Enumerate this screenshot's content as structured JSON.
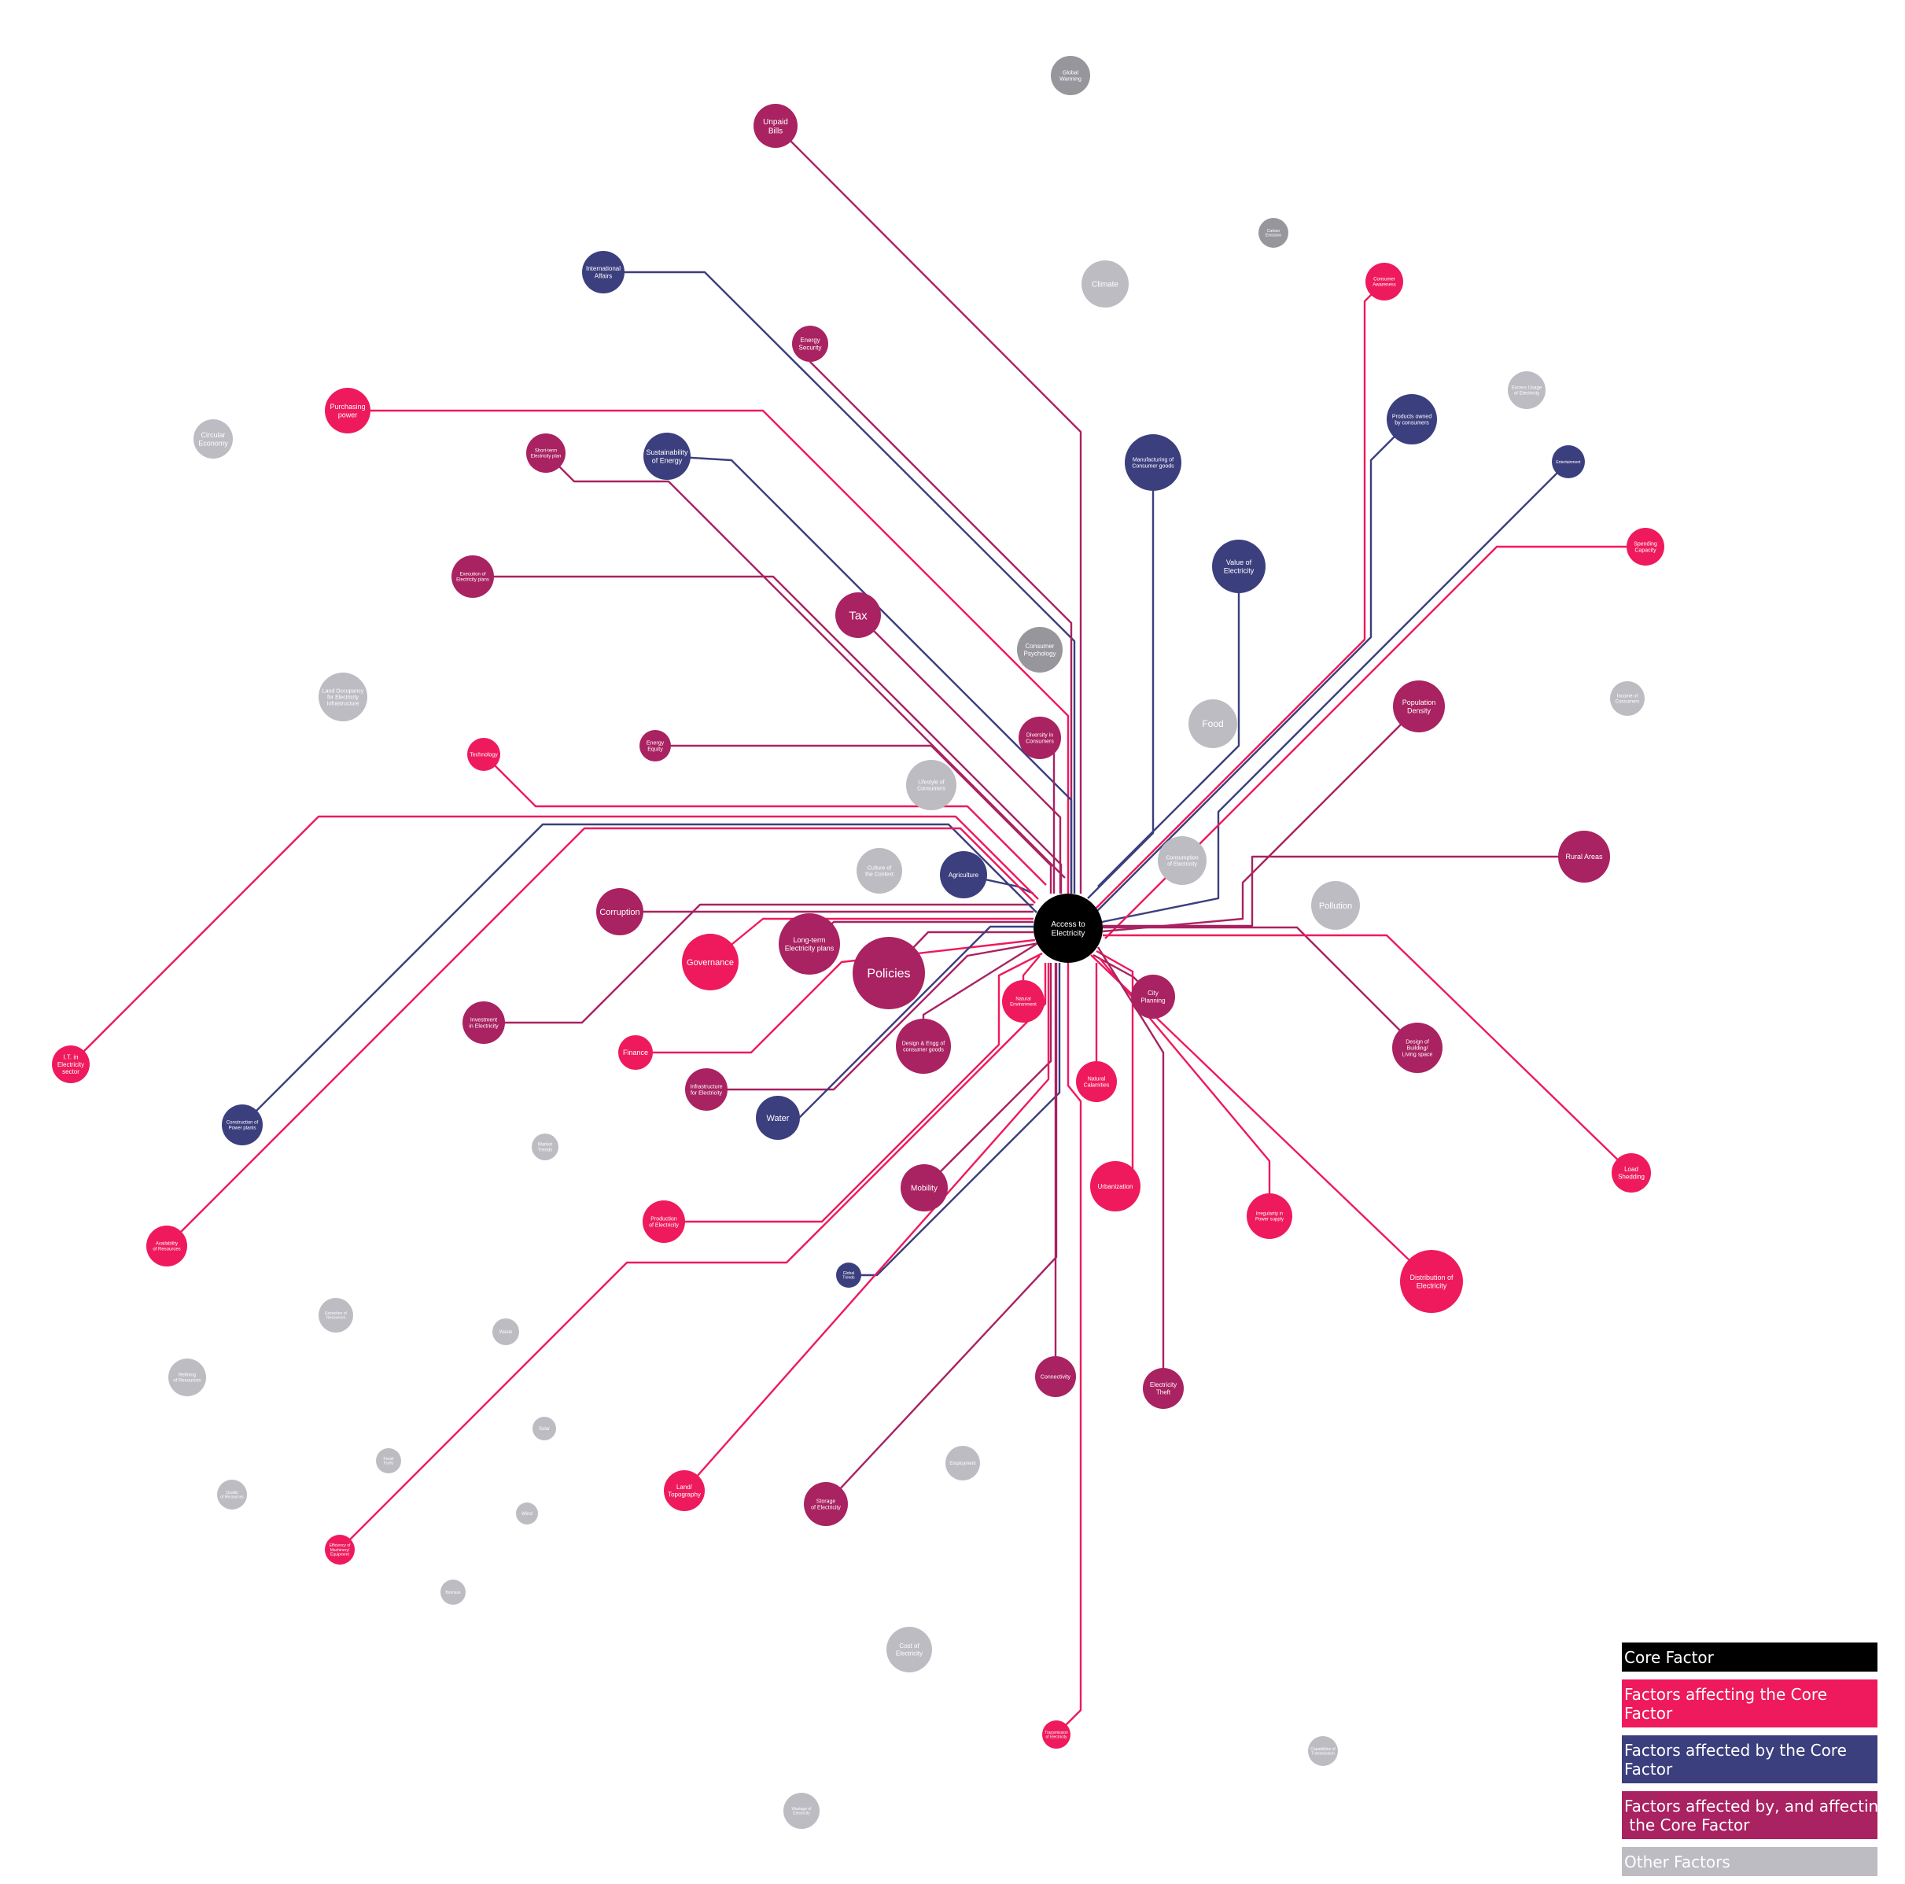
{
  "palette": {
    "core": "#000000",
    "affecting": "#ee1a5d",
    "affected": "#3b3f7e",
    "both": "#a92261",
    "other": "#bcbcc2",
    "other_dark": "#96969c"
  },
  "core": {
    "id": "access",
    "label": "Access to\nElectricity",
    "category": "core"
  },
  "nodes": [
    {
      "id": "global-warming",
      "label": "Global\nWarming",
      "category": "other_dark"
    },
    {
      "id": "unpaid-bills",
      "label": "Unpaid\nBills",
      "category": "both"
    },
    {
      "id": "carbon-emission",
      "label": "Carbon\nEmission",
      "category": "other_dark"
    },
    {
      "id": "international-affairs",
      "label": "International\nAffairs",
      "category": "affected"
    },
    {
      "id": "climate",
      "label": "Climate",
      "category": "other"
    },
    {
      "id": "consumer-awareness",
      "label": "Consumer\nAwareness",
      "category": "affecting"
    },
    {
      "id": "energy-security",
      "label": "Energy\nSecurity",
      "category": "both"
    },
    {
      "id": "excess-usage",
      "label": "Excess Usage\nof Electricity",
      "category": "other"
    },
    {
      "id": "purchasing-power",
      "label": "Purchasing\npower",
      "category": "affecting"
    },
    {
      "id": "products-owned",
      "label": "Products owned\nby consumers",
      "category": "affected"
    },
    {
      "id": "circular-economy",
      "label": "Circular\nEconomy",
      "category": "other"
    },
    {
      "id": "short-term-plans",
      "label": "Short-term\nElectricity plan",
      "category": "both"
    },
    {
      "id": "sustainability",
      "label": "Sustainability\nof Energy",
      "category": "affected"
    },
    {
      "id": "manufacturing",
      "label": "Manufacturing of\nConsumer goods",
      "category": "affected"
    },
    {
      "id": "entertainment",
      "label": "Entertainment",
      "category": "affected"
    },
    {
      "id": "spending-capacity",
      "label": "Spending\nCapacity",
      "category": "affecting"
    },
    {
      "id": "execution-plans",
      "label": "Execution of\nElectricity plans",
      "category": "both"
    },
    {
      "id": "value-electricity",
      "label": "Value of\nElectricity",
      "category": "affected"
    },
    {
      "id": "tax",
      "label": "Tax",
      "category": "both"
    },
    {
      "id": "consumer-psychology",
      "label": "Consumer\nPsychology",
      "category": "other_dark"
    },
    {
      "id": "land-occupancy",
      "label": "Land Occupancy\nfor Electricity\nInfrastructure",
      "category": "other"
    },
    {
      "id": "income-consumers",
      "label": "Income of\nConsumers",
      "category": "other"
    },
    {
      "id": "population-density",
      "label": "Population\nDensity",
      "category": "both"
    },
    {
      "id": "food",
      "label": "Food",
      "category": "other"
    },
    {
      "id": "diversity-consumers",
      "label": "Diversity in\nConsumers",
      "category": "both"
    },
    {
      "id": "energy-equity",
      "label": "Energy\nEquity",
      "category": "both"
    },
    {
      "id": "technology",
      "label": "Technology",
      "category": "affecting"
    },
    {
      "id": "lifestyle-consumers",
      "label": "Lifestyle of\nConsumers",
      "category": "other"
    },
    {
      "id": "culture-context",
      "label": "Culture of\nthe Context",
      "category": "other"
    },
    {
      "id": "agriculture",
      "label": "Agriculture",
      "category": "affected"
    },
    {
      "id": "consumption-electricity",
      "label": "Consumption\nof Electricity",
      "category": "other"
    },
    {
      "id": "rural-areas",
      "label": "Rural Areas",
      "category": "both"
    },
    {
      "id": "corruption",
      "label": "Corruption",
      "category": "both"
    },
    {
      "id": "pollution",
      "label": "Pollution",
      "category": "other"
    },
    {
      "id": "governance",
      "label": "Governance",
      "category": "affecting"
    },
    {
      "id": "long-term-plans",
      "label": "Long-term\nElectricity plans",
      "category": "both"
    },
    {
      "id": "policies",
      "label": "Policies",
      "category": "both"
    },
    {
      "id": "natural-environment",
      "label": "Natural\nEnvironment",
      "category": "affecting"
    },
    {
      "id": "city-planning",
      "label": "City\nPlanning",
      "category": "both"
    },
    {
      "id": "investment",
      "label": "Investment\nin Electricity",
      "category": "both"
    },
    {
      "id": "design-consumer-goods",
      "label": "Design & Engg of\nconsumer goods",
      "category": "both"
    },
    {
      "id": "design-building",
      "label": "Design of\nBuilding/\nLiving space",
      "category": "both"
    },
    {
      "id": "it-sector",
      "label": "I.T. in\nElectricity\nsector",
      "category": "affecting"
    },
    {
      "id": "finance",
      "label": "Finance",
      "category": "affecting"
    },
    {
      "id": "natural-calamities",
      "label": "Natural\nCalamities",
      "category": "affecting"
    },
    {
      "id": "infrastructure",
      "label": "Infrastructure\nfor Electricity",
      "category": "both"
    },
    {
      "id": "construction-plants",
      "label": "Construction of\nPower plants",
      "category": "affected"
    },
    {
      "id": "water",
      "label": "Water",
      "category": "affected"
    },
    {
      "id": "market-trends",
      "label": "Market\nTrends",
      "category": "other"
    },
    {
      "id": "load-shedding",
      "label": "Load\nShedding",
      "category": "affecting"
    },
    {
      "id": "mobility",
      "label": "Mobility",
      "category": "both"
    },
    {
      "id": "urbanization",
      "label": "Urbanization",
      "category": "affecting"
    },
    {
      "id": "production",
      "label": "Production\nof Electricity",
      "category": "affecting"
    },
    {
      "id": "irregularity",
      "label": "Irregularity in\nPower supply",
      "category": "affecting"
    },
    {
      "id": "availability-resources",
      "label": "Availability\nof Resources",
      "category": "affecting"
    },
    {
      "id": "distribution",
      "label": "Distribution of\nElectricity",
      "category": "affecting"
    },
    {
      "id": "global-trends",
      "label": "Global\nTrends",
      "category": "affected"
    },
    {
      "id": "extraction-resources",
      "label": "Extraction of\nResources",
      "category": "other"
    },
    {
      "id": "waste",
      "label": "Waste",
      "category": "other"
    },
    {
      "id": "refining-resources",
      "label": "Refining\nof Resources",
      "category": "other"
    },
    {
      "id": "connectivity",
      "label": "Connectivity",
      "category": "both"
    },
    {
      "id": "electricity-theft",
      "label": "Electricity\nTheft",
      "category": "both"
    },
    {
      "id": "solar",
      "label": "Solar",
      "category": "other"
    },
    {
      "id": "fossil-fuels",
      "label": "Fossil\nFuels",
      "category": "other"
    },
    {
      "id": "employment",
      "label": "Employment",
      "category": "other"
    },
    {
      "id": "quality-resources",
      "label": "Quality\nof Resources",
      "category": "other"
    },
    {
      "id": "land-topography",
      "label": "Land/\nTopography",
      "category": "affecting"
    },
    {
      "id": "storage",
      "label": "Storage\nof Electricity",
      "category": "both"
    },
    {
      "id": "wind",
      "label": "Wind",
      "category": "other"
    },
    {
      "id": "efficiency-machinery",
      "label": "Efficiency of\nMachinery/\nEquipment",
      "category": "affecting"
    },
    {
      "id": "biomass",
      "label": "Biomass",
      "category": "other"
    },
    {
      "id": "cost-electricity",
      "label": "Cost of\nElectricity",
      "category": "other"
    },
    {
      "id": "transmission",
      "label": "Transmission\nof Electricity",
      "category": "affecting"
    },
    {
      "id": "capabilities-transmission",
      "label": "Capabilities of\nTransmission",
      "category": "other"
    },
    {
      "id": "wastage",
      "label": "Wastage of\nElectricity",
      "category": "other"
    }
  ],
  "edges": [
    {
      "from": "unpaid-bills",
      "category": "both"
    },
    {
      "from": "international-affairs",
      "category": "affected"
    },
    {
      "from": "consumer-awareness",
      "category": "affecting"
    },
    {
      "from": "energy-security",
      "category": "both"
    },
    {
      "from": "purchasing-power",
      "category": "affecting"
    },
    {
      "from": "products-owned",
      "category": "affected"
    },
    {
      "from": "short-term-plans",
      "category": "both"
    },
    {
      "from": "sustainability",
      "category": "affected"
    },
    {
      "from": "manufacturing",
      "category": "affected"
    },
    {
      "from": "entertainment",
      "category": "affected"
    },
    {
      "from": "spending-capacity",
      "category": "affecting"
    },
    {
      "from": "execution-plans",
      "category": "both"
    },
    {
      "from": "value-electricity",
      "category": "affected"
    },
    {
      "from": "tax",
      "category": "both"
    },
    {
      "from": "population-density",
      "category": "both"
    },
    {
      "from": "diversity-consumers",
      "category": "both"
    },
    {
      "from": "energy-equity",
      "category": "both"
    },
    {
      "from": "technology",
      "category": "affecting"
    },
    {
      "from": "agriculture",
      "category": "affected"
    },
    {
      "from": "rural-areas",
      "category": "both"
    },
    {
      "from": "corruption",
      "category": "both"
    },
    {
      "from": "governance",
      "category": "affecting"
    },
    {
      "from": "long-term-plans",
      "category": "both"
    },
    {
      "from": "policies",
      "category": "both"
    },
    {
      "from": "natural-environment",
      "category": "affecting"
    },
    {
      "from": "city-planning",
      "category": "both"
    },
    {
      "from": "investment",
      "category": "both"
    },
    {
      "from": "design-consumer-goods",
      "category": "both"
    },
    {
      "from": "design-building",
      "category": "both"
    },
    {
      "from": "it-sector",
      "category": "affecting"
    },
    {
      "from": "finance",
      "category": "affecting"
    },
    {
      "from": "natural-calamities",
      "category": "affecting"
    },
    {
      "from": "infrastructure",
      "category": "both"
    },
    {
      "from": "construction-plants",
      "category": "affected"
    },
    {
      "from": "water",
      "category": "affected"
    },
    {
      "from": "load-shedding",
      "category": "affecting"
    },
    {
      "from": "mobility",
      "category": "both"
    },
    {
      "from": "urbanization",
      "category": "affecting"
    },
    {
      "from": "production",
      "category": "affecting"
    },
    {
      "from": "irregularity",
      "category": "affecting"
    },
    {
      "from": "availability-resources",
      "category": "affecting"
    },
    {
      "from": "distribution",
      "category": "affecting"
    },
    {
      "from": "global-trends",
      "category": "affected"
    },
    {
      "from": "connectivity",
      "category": "both"
    },
    {
      "from": "electricity-theft",
      "category": "both"
    },
    {
      "from": "land-topography",
      "category": "affecting"
    },
    {
      "from": "storage",
      "category": "both"
    },
    {
      "from": "efficiency-machinery",
      "category": "affecting"
    },
    {
      "from": "transmission",
      "category": "affecting"
    }
  ],
  "legend": [
    {
      "label": "Core Factor",
      "category": "core"
    },
    {
      "label": "Factors affecting the Core Factor",
      "category": "affecting"
    },
    {
      "label": "Factors affected by the Core Factor",
      "category": "affected"
    },
    {
      "label": "Factors affected by, and affecting,\n the Core Factor",
      "category": "both"
    },
    {
      "label": "Other Factors",
      "category": "other"
    }
  ]
}
